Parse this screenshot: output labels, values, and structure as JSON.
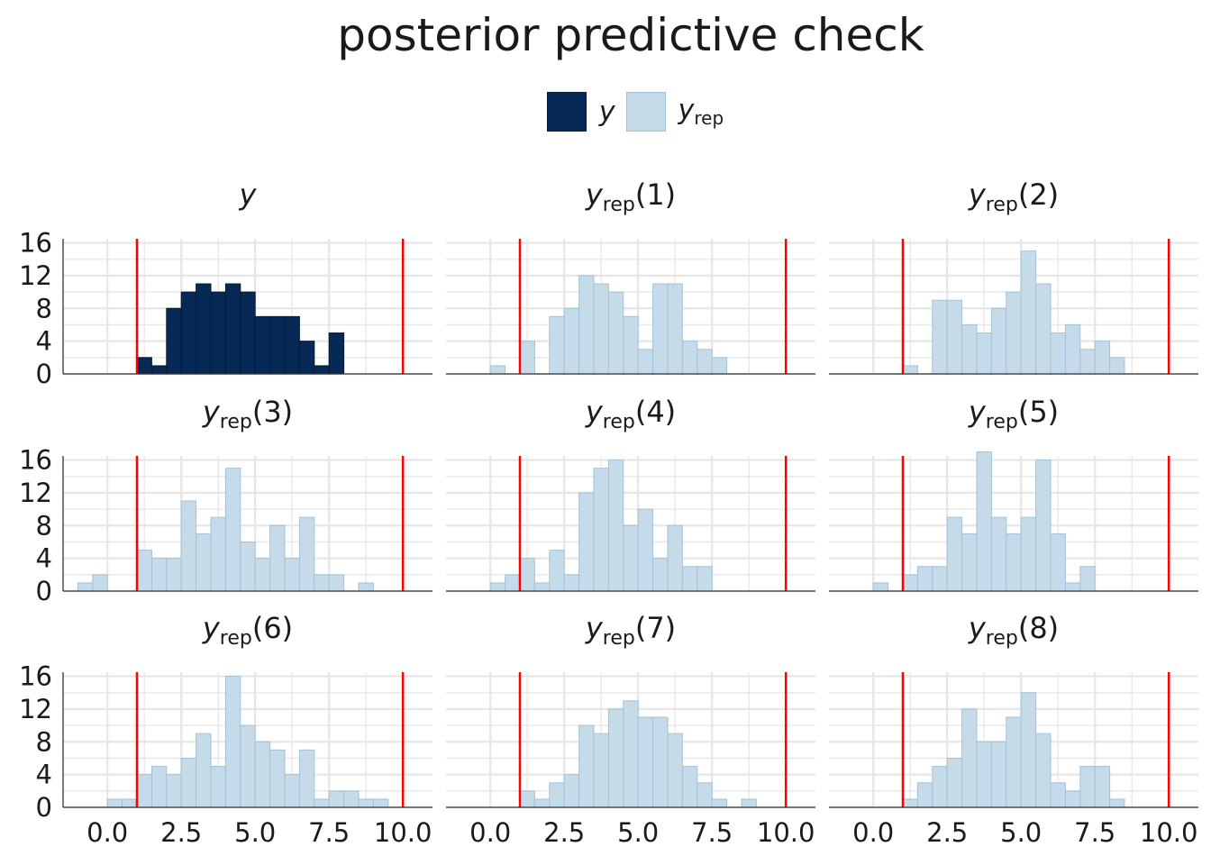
{
  "title": "posterior predictive check",
  "legend": {
    "items": [
      {
        "label": "y",
        "sub": "",
        "fill": "#072956",
        "stroke": "#041b3a"
      },
      {
        "label": "y",
        "sub": "rep",
        "fill": "#c6dbe9",
        "stroke": "#a3c2d9"
      }
    ]
  },
  "colors": {
    "y_fill": "#072956",
    "y_stroke": "#041b3a",
    "rep_fill": "#c6dbe9",
    "rep_stroke": "#a3c2d9",
    "vline": "#ff0000",
    "grid": "#e6e6e6",
    "axis": "#333333"
  },
  "chart_data": {
    "type": "bar",
    "layout": "facet-grid 3x3",
    "x_ticks": [
      "0.0",
      "2.5",
      "5.0",
      "7.5",
      "10.0"
    ],
    "y_ticks": [
      "0",
      "4",
      "8",
      "12",
      "16"
    ],
    "xlim": [
      -1.5,
      11
    ],
    "ylim": [
      0,
      16.5
    ],
    "vlines": [
      1,
      10
    ],
    "bin_width": 0.5,
    "panels": [
      {
        "label": "y",
        "sub": "",
        "suffix": "",
        "kind": "y",
        "bins": [
          [
            1.25,
            2
          ],
          [
            1.75,
            1
          ],
          [
            2.25,
            8
          ],
          [
            2.75,
            10
          ],
          [
            3.25,
            11
          ],
          [
            3.75,
            10
          ],
          [
            4.25,
            11
          ],
          [
            4.75,
            10
          ],
          [
            5.25,
            7
          ],
          [
            5.75,
            7
          ],
          [
            6.25,
            7
          ],
          [
            6.75,
            4
          ],
          [
            7.25,
            1
          ],
          [
            7.75,
            5
          ]
        ]
      },
      {
        "label": "y",
        "sub": "rep",
        "suffix": "(1)",
        "kind": "rep",
        "bins": [
          [
            0.25,
            1
          ],
          [
            1.25,
            4
          ],
          [
            2.25,
            7
          ],
          [
            2.75,
            8
          ],
          [
            3.25,
            12
          ],
          [
            3.75,
            11
          ],
          [
            4.25,
            10
          ],
          [
            4.75,
            7
          ],
          [
            5.25,
            3
          ],
          [
            5.75,
            11
          ],
          [
            6.25,
            11
          ],
          [
            6.75,
            4
          ],
          [
            7.25,
            3
          ],
          [
            7.75,
            2
          ]
        ]
      },
      {
        "label": "y",
        "sub": "rep",
        "suffix": "(2)",
        "kind": "rep",
        "bins": [
          [
            1.25,
            1
          ],
          [
            2.25,
            9
          ],
          [
            2.75,
            9
          ],
          [
            3.25,
            6
          ],
          [
            3.75,
            5
          ],
          [
            4.25,
            8
          ],
          [
            4.75,
            10
          ],
          [
            5.25,
            15
          ],
          [
            5.75,
            11
          ],
          [
            6.25,
            5
          ],
          [
            6.75,
            6
          ],
          [
            7.25,
            3
          ],
          [
            7.75,
            4
          ],
          [
            8.25,
            2
          ]
        ]
      },
      {
        "label": "y",
        "sub": "rep",
        "suffix": "(3)",
        "kind": "rep",
        "bins": [
          [
            -0.75,
            1
          ],
          [
            -0.25,
            2
          ],
          [
            1.25,
            5
          ],
          [
            1.75,
            4
          ],
          [
            2.25,
            4
          ],
          [
            2.75,
            11
          ],
          [
            3.25,
            7
          ],
          [
            3.75,
            9
          ],
          [
            4.25,
            15
          ],
          [
            4.75,
            6
          ],
          [
            5.25,
            4
          ],
          [
            5.75,
            8
          ],
          [
            6.25,
            4
          ],
          [
            6.75,
            9
          ],
          [
            7.25,
            2
          ],
          [
            7.75,
            2
          ],
          [
            8.75,
            1
          ]
        ]
      },
      {
        "label": "y",
        "sub": "rep",
        "suffix": "(4)",
        "kind": "rep",
        "bins": [
          [
            0.25,
            1
          ],
          [
            0.75,
            2
          ],
          [
            1.25,
            4
          ],
          [
            1.75,
            1
          ],
          [
            2.25,
            5
          ],
          [
            2.75,
            2
          ],
          [
            3.25,
            12
          ],
          [
            3.75,
            15
          ],
          [
            4.25,
            16
          ],
          [
            4.75,
            8
          ],
          [
            5.25,
            10
          ],
          [
            5.75,
            4
          ],
          [
            6.25,
            8
          ],
          [
            6.75,
            3
          ],
          [
            7.25,
            3
          ]
        ]
      },
      {
        "label": "y",
        "sub": "rep",
        "suffix": "(5)",
        "kind": "rep",
        "bins": [
          [
            0.25,
            1
          ],
          [
            1.25,
            2
          ],
          [
            1.75,
            3
          ],
          [
            2.25,
            3
          ],
          [
            2.75,
            9
          ],
          [
            3.25,
            7
          ],
          [
            3.75,
            17
          ],
          [
            4.25,
            9
          ],
          [
            4.75,
            7
          ],
          [
            5.25,
            9
          ],
          [
            5.75,
            16
          ],
          [
            6.25,
            7
          ],
          [
            6.75,
            1
          ],
          [
            7.25,
            3
          ]
        ]
      },
      {
        "label": "y",
        "sub": "rep",
        "suffix": "(6)",
        "kind": "rep",
        "bins": [
          [
            0.25,
            1
          ],
          [
            0.75,
            1
          ],
          [
            1.25,
            4
          ],
          [
            1.75,
            5
          ],
          [
            2.25,
            4
          ],
          [
            2.75,
            6
          ],
          [
            3.25,
            9
          ],
          [
            3.75,
            5
          ],
          [
            4.25,
            16
          ],
          [
            4.75,
            10
          ],
          [
            5.25,
            8
          ],
          [
            5.75,
            7
          ],
          [
            6.25,
            4
          ],
          [
            6.75,
            7
          ],
          [
            7.25,
            1
          ],
          [
            7.75,
            2
          ],
          [
            8.25,
            2
          ],
          [
            8.75,
            1
          ],
          [
            9.25,
            1
          ]
        ]
      },
      {
        "label": "y",
        "sub": "rep",
        "suffix": "(7)",
        "kind": "rep",
        "bins": [
          [
            1.25,
            2
          ],
          [
            1.75,
            1
          ],
          [
            2.25,
            3
          ],
          [
            2.75,
            4
          ],
          [
            3.25,
            10
          ],
          [
            3.75,
            9
          ],
          [
            4.25,
            12
          ],
          [
            4.75,
            13
          ],
          [
            5.25,
            11
          ],
          [
            5.75,
            11
          ],
          [
            6.25,
            9
          ],
          [
            6.75,
            5
          ],
          [
            7.25,
            3
          ],
          [
            7.75,
            1
          ],
          [
            8.75,
            1
          ]
        ]
      },
      {
        "label": "y",
        "sub": "rep",
        "suffix": "(8)",
        "kind": "rep",
        "bins": [
          [
            1.25,
            1
          ],
          [
            1.75,
            3
          ],
          [
            2.25,
            5
          ],
          [
            2.75,
            6
          ],
          [
            3.25,
            12
          ],
          [
            3.75,
            8
          ],
          [
            4.25,
            8
          ],
          [
            4.75,
            11
          ],
          [
            5.25,
            14
          ],
          [
            5.75,
            9
          ],
          [
            6.25,
            3
          ],
          [
            6.75,
            2
          ],
          [
            7.25,
            5
          ],
          [
            7.75,
            5
          ],
          [
            8.25,
            1
          ]
        ]
      }
    ]
  }
}
